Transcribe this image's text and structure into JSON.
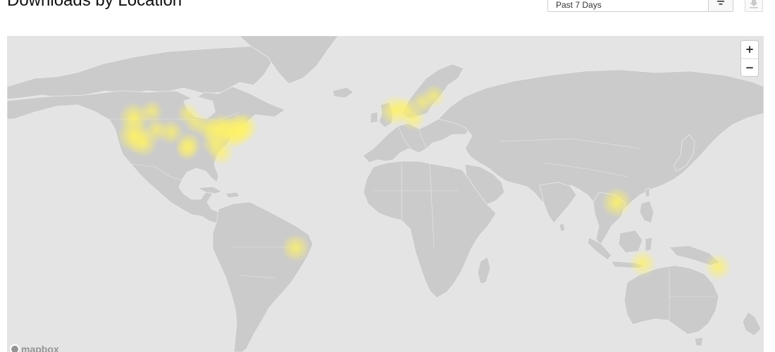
{
  "header": {
    "title": "Downloads by Location"
  },
  "range": {
    "selected": "Past 7 Days"
  },
  "map": {
    "zoom_in_label": "+",
    "zoom_out_label": "−",
    "logo_text": "mapbox",
    "land_color": "#cbcbcb",
    "water_color": "#e4e4e4",
    "heat_color": "#fff266",
    "heat_spots": [
      {
        "place": "Vancouver / Seattle",
        "lon": -122.3,
        "lat": 47.6,
        "weight": 0.85
      },
      {
        "place": "Calgary",
        "lon": -114.1,
        "lat": 51.0,
        "weight": 0.4
      },
      {
        "place": "Winnipeg",
        "lon": -97.1,
        "lat": 49.9,
        "weight": 0.35
      },
      {
        "place": "San Francisco",
        "lon": -122.4,
        "lat": 37.8,
        "weight": 1.0
      },
      {
        "place": "Los Angeles",
        "lon": -118.2,
        "lat": 34.1,
        "weight": 0.8
      },
      {
        "place": "Salt Lake City",
        "lon": -111.9,
        "lat": 40.8,
        "weight": 0.45
      },
      {
        "place": "Denver",
        "lon": -105.0,
        "lat": 39.7,
        "weight": 0.5
      },
      {
        "place": "Dallas",
        "lon": -96.8,
        "lat": 32.8,
        "weight": 0.55
      },
      {
        "place": "Austin",
        "lon": -97.7,
        "lat": 30.3,
        "weight": 0.4
      },
      {
        "place": "Chicago",
        "lon": -87.6,
        "lat": 41.9,
        "weight": 0.5
      },
      {
        "place": "Minneapolis",
        "lon": -93.3,
        "lat": 44.9,
        "weight": 0.35
      },
      {
        "place": "Detroit / Toronto",
        "lon": -81.0,
        "lat": 43.0,
        "weight": 0.55
      },
      {
        "place": "Ohio",
        "lon": -83.0,
        "lat": 40.0,
        "weight": 0.75
      },
      {
        "place": "New York",
        "lon": -74.0,
        "lat": 40.7,
        "weight": 1.0
      },
      {
        "place": "Boston",
        "lon": -71.1,
        "lat": 42.4,
        "weight": 0.8
      },
      {
        "place": "Washington DC",
        "lon": -77.0,
        "lat": 38.9,
        "weight": 0.9
      },
      {
        "place": "Atlanta",
        "lon": -84.4,
        "lat": 33.7,
        "weight": 0.6
      },
      {
        "place": "Florida",
        "lon": -81.4,
        "lat": 28.5,
        "weight": 0.55
      },
      {
        "place": "London",
        "lon": -0.1,
        "lat": 51.5,
        "weight": 0.9
      },
      {
        "place": "Amsterdam",
        "lon": 4.9,
        "lat": 52.4,
        "weight": 0.5
      },
      {
        "place": "Switzerland",
        "lon": 8.5,
        "lat": 47.2,
        "weight": 0.5
      },
      {
        "place": "Copenhagen",
        "lon": 12.6,
        "lat": 55.7,
        "weight": 0.35
      },
      {
        "place": "Stockholm",
        "lon": 18.1,
        "lat": 59.3,
        "weight": 0.45
      },
      {
        "place": "Singapore / Malaysia",
        "lon": 103.8,
        "lat": 1.3,
        "weight": 0.85
      },
      {
        "place": "Sao Paulo",
        "lon": -46.6,
        "lat": -23.5,
        "weight": 0.7
      },
      {
        "place": "Perth",
        "lon": 115.9,
        "lat": -31.9,
        "weight": 0.65
      },
      {
        "place": "Sydney",
        "lon": 151.2,
        "lat": -33.9,
        "weight": 0.65
      }
    ]
  }
}
